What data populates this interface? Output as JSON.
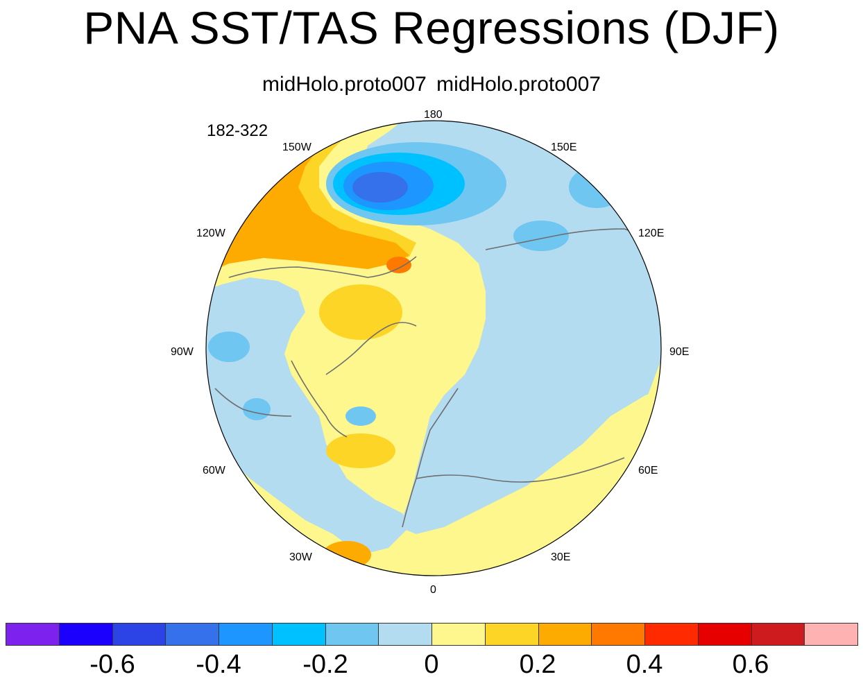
{
  "title": "PNA SST/TAS Regressions (DJF)",
  "subtitle": "midHolo.proto007  midHolo.proto007",
  "period_label": "182-322",
  "longitude_labels": {
    "lon_180": "180",
    "lon_150e": "150E",
    "lon_120e": "120E",
    "lon_90e": "90E",
    "lon_60e": "60E",
    "lon_30e": "30E",
    "lon_0": "0",
    "lon_30w": "30W",
    "lon_60w": "60W",
    "lon_90w": "90W",
    "lon_120w": "120W",
    "lon_150w": "150W"
  },
  "colorbar": {
    "colors": [
      "#7c21ee",
      "#1a00fc",
      "#2c44e5",
      "#3471ea",
      "#1d97ff",
      "#00c1ff",
      "#6fc6f0",
      "#b3dcf1",
      "#fdf78e",
      "#fdd526",
      "#fdab00",
      "#ff7800",
      "#ff2a00",
      "#e60000",
      "#ce1b1e",
      "#ffb2b2"
    ],
    "tick_labels": {
      "t_m06": "-0.6",
      "t_m04": "-0.4",
      "t_m02": "-0.2",
      "t_0": "0",
      "t_02": "0.2",
      "t_04": "0.4",
      "t_06": "0.6"
    }
  },
  "map_colors": {
    "ocean_positive_weak": "#fdf78e",
    "negative_weak": "#b3dcf1",
    "negative_mid": "#6fc6f0",
    "negative_strong": "#00c1ff",
    "negative_stronger": "#1d97ff",
    "negative_core": "#3471ea",
    "positive_mid": "#fdd526",
    "positive_strong": "#fdab00",
    "positive_stronger": "#ff7800",
    "coast": "#6e6e6e"
  }
}
